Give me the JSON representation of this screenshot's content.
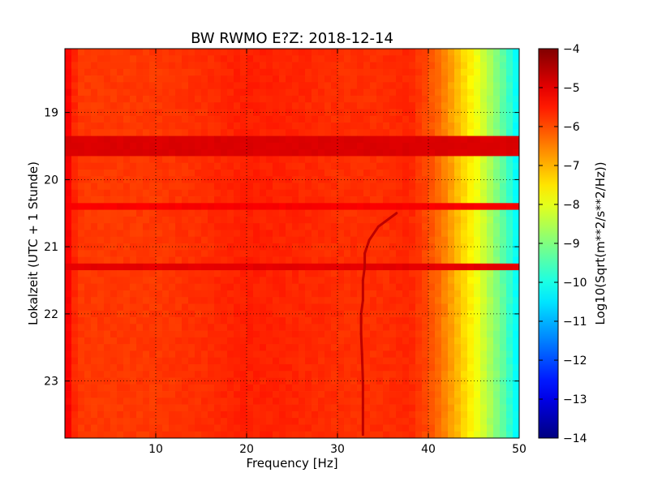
{
  "chart_data": {
    "type": "heatmap",
    "title": "BW RWMO E?Z: 2018-12-14",
    "xlabel": "Frequency [Hz]",
    "ylabel": "Lokalzeit (UTC + 1 Stunde)",
    "xlim": [
      0,
      50
    ],
    "ylim": [
      18.05,
      23.85
    ],
    "y_inverted": true,
    "x_ticks": [
      10,
      20,
      30,
      40,
      50
    ],
    "x_tick_labels": [
      "10",
      "20",
      "30",
      "40",
      "50"
    ],
    "y_ticks": [
      19,
      20,
      21,
      22,
      23
    ],
    "y_tick_labels": [
      "19",
      "20",
      "21",
      "22",
      "23"
    ],
    "grid": true,
    "colormap": "jet",
    "colorbar": {
      "label": "Log10(Sqrt(m**2/s**2/Hz))",
      "range": [
        -14,
        -4
      ],
      "ticks": [
        -4,
        -5,
        -6,
        -7,
        -8,
        -9,
        -10,
        -11,
        -12,
        -13,
        -14
      ],
      "tick_labels": [
        "−4",
        "−5",
        "−6",
        "−7",
        "−8",
        "−9",
        "−10",
        "−11",
        "−12",
        "−13",
        "−14"
      ]
    },
    "base_level": -5.8,
    "spectral_profile": {
      "frequency": [
        0,
        0.3,
        0.8,
        1.5,
        5,
        10,
        15,
        18,
        20,
        25,
        30,
        35,
        38,
        39.5,
        40,
        41,
        42,
        43,
        44,
        45,
        46,
        47,
        48,
        49,
        50
      ],
      "level": [
        -5.0,
        -5.2,
        -5.5,
        -5.8,
        -5.8,
        -5.8,
        -5.7,
        -5.6,
        -5.55,
        -5.6,
        -5.7,
        -5.7,
        -5.6,
        -5.9,
        -6.0,
        -6.25,
        -6.6,
        -7.0,
        -7.4,
        -7.75,
        -8.2,
        -8.7,
        -9.2,
        -9.8,
        -10.4
      ]
    },
    "high_noise_bands": [
      {
        "time": 19.47,
        "level": -4.9
      },
      {
        "time": 19.6,
        "level": -4.9
      },
      {
        "time": 20.42,
        "level": -5.2
      },
      {
        "time": 21.33,
        "level": -5.0
      }
    ],
    "tonal_line": {
      "time": [
        20.5,
        20.7,
        20.9,
        21.1,
        21.3,
        21.5,
        21.8,
        22.0,
        22.3,
        22.6,
        23.0,
        23.4,
        23.8
      ],
      "frequency": [
        36.5,
        34.5,
        33.5,
        33.0,
        33.0,
        32.8,
        32.8,
        32.6,
        32.6,
        32.7,
        32.8,
        32.8,
        32.8
      ],
      "level": -4.6
    }
  }
}
